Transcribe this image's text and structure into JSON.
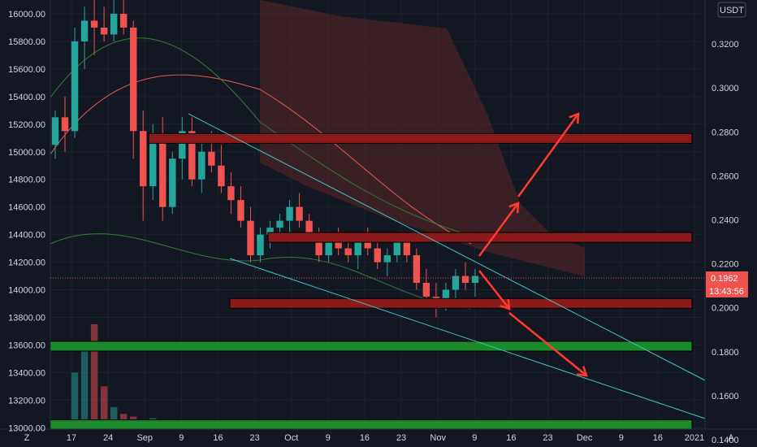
{
  "symbol_badge": "USDT",
  "corner_left": "Z",
  "corner_right": "A",
  "price_badge": "0.1962",
  "timer_badge": "13:43:56",
  "colors": {
    "background": "#131722",
    "up": "#26a69a",
    "down": "#ef5350",
    "red_zone": "#8b1a1a",
    "green_zone": "#1b8a2a",
    "trendline": "#3cc4c4",
    "arrow": "#ff3b30",
    "cloud": "#6b2a2a"
  },
  "chart_data": {
    "type": "candlestick",
    "left_axis": {
      "ticks": [
        "16000.00",
        "15800.00",
        "15600.00",
        "15400.00",
        "15200.00",
        "15000.00",
        "14800.00",
        "14600.00",
        "14400.00",
        "14200.00",
        "14000.00",
        "13800.00",
        "13600.00",
        "13400.00",
        "13200.00",
        "13000.00"
      ],
      "range": [
        12990,
        16100
      ]
    },
    "right_axis": {
      "ticks": [
        "0.3200",
        "0.3000",
        "0.2800",
        "0.2600",
        "0.2400",
        "0.2200",
        "0.2000",
        "0.1800",
        "0.1600",
        "0.1400"
      ],
      "range": [
        0.1448,
        0.34
      ]
    },
    "time_axis": {
      "ticks": [
        "17",
        "24",
        "Sep",
        "9",
        "16",
        "23",
        "Oct",
        "9",
        "16",
        "23",
        "Nov",
        "9",
        "16",
        "23",
        "Dec",
        "9",
        "16",
        "2021"
      ]
    },
    "last_price": 0.1962,
    "zones": [
      {
        "kind": "resistance",
        "value": 0.277
      },
      {
        "kind": "resistance",
        "value": 0.232
      },
      {
        "kind": "resistance",
        "value": 0.202
      },
      {
        "kind": "support",
        "value": 0.1825
      },
      {
        "kind": "support",
        "value": 0.1468
      }
    ],
    "candles": [
      [
        15050,
        15300,
        14950,
        15250
      ],
      [
        15250,
        15400,
        15000,
        15150
      ],
      [
        15150,
        15900,
        15100,
        15800
      ],
      [
        15800,
        16050,
        15600,
        15950
      ],
      [
        15950,
        16100,
        15700,
        15900
      ],
      [
        15900,
        16050,
        15800,
        15850
      ],
      [
        15850,
        16100,
        15800,
        16000
      ],
      [
        16000,
        16100,
        15850,
        15900
      ],
      [
        15900,
        15950,
        14950,
        15150
      ],
      [
        15150,
        15300,
        14500,
        14750
      ],
      [
        14750,
        15200,
        14650,
        15100
      ],
      [
        15100,
        15250,
        14500,
        14600
      ],
      [
        14600,
        15000,
        14550,
        14950
      ],
      [
        14950,
        15250,
        14800,
        15150
      ],
      [
        15150,
        15250,
        14750,
        14800
      ],
      [
        14800,
        15100,
        14700,
        15000
      ],
      [
        15000,
        15150,
        14850,
        14900
      ],
      [
        14900,
        15050,
        14700,
        14750
      ],
      [
        14750,
        14850,
        14550,
        14650
      ],
      [
        14650,
        14750,
        14450,
        14500
      ],
      [
        14500,
        14600,
        14200,
        14250
      ],
      [
        14250,
        14450,
        14200,
        14400
      ],
      [
        14400,
        14500,
        14300,
        14450
      ],
      [
        14450,
        14550,
        14350,
        14500
      ],
      [
        14500,
        14650,
        14400,
        14600
      ],
      [
        14600,
        14700,
        14450,
        14500
      ],
      [
        14500,
        14550,
        14350,
        14400
      ],
      [
        14400,
        14450,
        14200,
        14250
      ],
      [
        14250,
        14400,
        14200,
        14350
      ],
      [
        14350,
        14450,
        14250,
        14300
      ],
      [
        14300,
        14400,
        14200,
        14250
      ],
      [
        14250,
        14400,
        14150,
        14350
      ],
      [
        14350,
        14450,
        14250,
        14300
      ],
      [
        14300,
        14350,
        14150,
        14200
      ],
      [
        14200,
        14300,
        14100,
        14250
      ],
      [
        14250,
        14400,
        14200,
        14350
      ],
      [
        14350,
        14400,
        14200,
        14250
      ],
      [
        14250,
        14300,
        14000,
        14050
      ],
      [
        14050,
        14150,
        13900,
        13950
      ],
      [
        13950,
        14050,
        13800,
        13900
      ],
      [
        13900,
        14050,
        13850,
        14000
      ],
      [
        14000,
        14150,
        13900,
        14100
      ],
      [
        14100,
        14200,
        14000,
        14050
      ],
      [
        14050,
        14150,
        13950,
        14100
      ]
    ],
    "volume_max": 13750,
    "volumes": [
      13000,
      13050,
      13400,
      13600,
      13750,
      13300,
      13150,
      13100,
      13080,
      13060,
      13070,
      13050,
      13040,
      13060,
      13050,
      13040,
      13030,
      13020,
      13040,
      13050,
      13030,
      13020,
      13030,
      13040,
      13030,
      13020,
      13025,
      13030,
      13020,
      13025,
      13030,
      13020,
      13025,
      13020,
      13030,
      13025,
      13040,
      13050,
      13030,
      13020,
      13025,
      13030,
      13020,
      13025
    ]
  }
}
